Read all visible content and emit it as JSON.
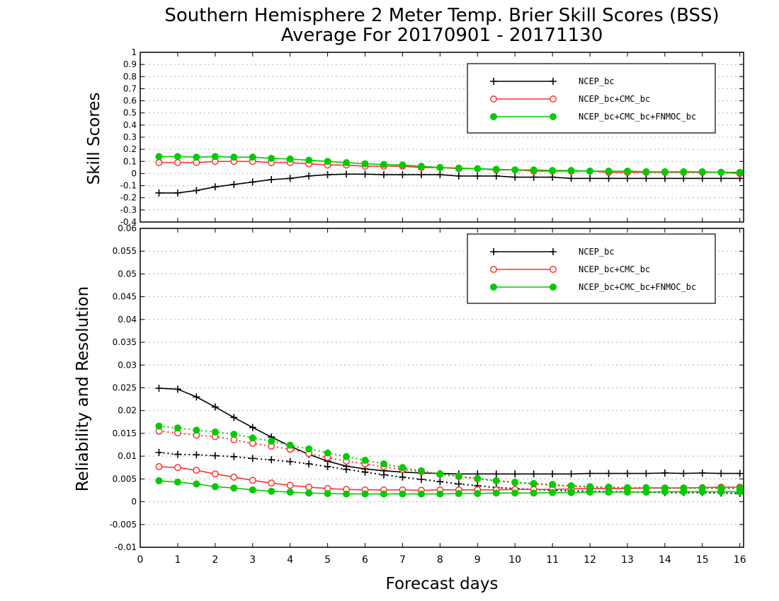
{
  "title_line1": "Southern Hemisphere 2 Meter Temp. Brier Skill Scores (BSS)",
  "title_line2": "Average For 20170901 - 20171130",
  "xlabel": "Forecast days",
  "x_ticks": [
    "0",
    "1",
    "2",
    "3",
    "4",
    "5",
    "6",
    "7",
    "8",
    "9",
    "10",
    "11",
    "12",
    "13",
    "14",
    "15",
    "16"
  ],
  "colors": {
    "NCEP_bc": "#000000",
    "NCEP_bc+CMC_bc": "#ff3030",
    "NCEP_bc+CMC_bc+FNMOC_bc": "#00cc00",
    "grid": "#b0b0b0"
  },
  "chart_data": [
    {
      "type": "line",
      "ylabel": "Skill Scores",
      "xlim": [
        0,
        16.1
      ],
      "ylim": [
        -0.4,
        1
      ],
      "y_ticks": [
        "-0.4",
        "-0.3",
        "-0.2",
        "-0.1",
        "0",
        "0.1",
        "0.2",
        "0.3",
        "0.4",
        "0.5",
        "0.6",
        "0.7",
        "0.8",
        "0.9",
        "1"
      ],
      "grid": true,
      "legend_position": "top-right",
      "x": [
        0.5,
        1,
        1.5,
        2,
        2.5,
        3,
        3.5,
        4,
        4.5,
        5,
        5.5,
        6,
        6.5,
        7,
        7.5,
        8,
        8.5,
        9,
        9.5,
        10,
        10.5,
        11,
        11.5,
        12,
        12.5,
        13,
        13.5,
        14,
        14.5,
        15,
        15.5,
        16
      ],
      "series": [
        {
          "name": "NCEP_bc",
          "marker": "plus",
          "linestyle": "solid",
          "values": [
            -0.16,
            -0.16,
            -0.14,
            -0.11,
            -0.09,
            -0.07,
            -0.05,
            -0.04,
            -0.02,
            -0.01,
            -0.005,
            -0.005,
            -0.01,
            -0.01,
            -0.01,
            -0.01,
            -0.02,
            -0.02,
            -0.02,
            -0.03,
            -0.03,
            -0.03,
            -0.04,
            -0.04,
            -0.04,
            -0.04,
            -0.04,
            -0.04,
            -0.04,
            -0.04,
            -0.04,
            -0.04
          ]
        },
        {
          "name": "NCEP_bc+CMC_bc",
          "marker": "circle-open",
          "linestyle": "solid",
          "values": [
            0.09,
            0.09,
            0.09,
            0.1,
            0.1,
            0.1,
            0.09,
            0.09,
            0.08,
            0.07,
            0.07,
            0.06,
            0.06,
            0.06,
            0.05,
            0.05,
            0.04,
            0.04,
            0.03,
            0.03,
            0.02,
            0.02,
            0.02,
            0.02,
            0.01,
            0.01,
            0.01,
            0.01,
            0.01,
            0.01,
            0.01,
            0.0
          ]
        },
        {
          "name": "NCEP_bc+CMC_bc+FNMOC_bc",
          "marker": "circle-filled",
          "linestyle": "solid",
          "values": [
            0.14,
            0.14,
            0.135,
            0.14,
            0.135,
            0.135,
            0.125,
            0.12,
            0.11,
            0.1,
            0.09,
            0.08,
            0.075,
            0.07,
            0.06,
            0.05,
            0.045,
            0.04,
            0.035,
            0.03,
            0.03,
            0.025,
            0.025,
            0.02,
            0.02,
            0.02,
            0.015,
            0.015,
            0.015,
            0.015,
            0.01,
            0.01
          ]
        }
      ]
    },
    {
      "type": "line",
      "ylabel": "Reliability and Resolution",
      "xlim": [
        0,
        16.1
      ],
      "ylim": [
        -0.01,
        0.06
      ],
      "y_ticks": [
        "-0.01",
        "-0.005",
        "0",
        "0.005",
        "0.01",
        "0.015",
        "0.02",
        "0.025",
        "0.03",
        "0.035",
        "0.04",
        "0.045",
        "0.05",
        "0.055",
        "0.06"
      ],
      "grid": true,
      "legend_position": "top-right",
      "x": [
        0.5,
        1,
        1.5,
        2,
        2.5,
        3,
        3.5,
        4,
        4.5,
        5,
        5.5,
        6,
        6.5,
        7,
        7.5,
        8,
        8.5,
        9,
        9.5,
        10,
        10.5,
        11,
        11.5,
        12,
        12.5,
        13,
        13.5,
        14,
        14.5,
        15,
        15.5,
        16
      ],
      "series": [
        {
          "name": "NCEP_bc",
          "component": "resolution",
          "marker": "plus",
          "linestyle": "solid",
          "values": [
            0.0249,
            0.0247,
            0.023,
            0.0208,
            0.0185,
            0.0163,
            0.0142,
            0.0122,
            0.0104,
            0.0089,
            0.0078,
            0.0072,
            0.0068,
            0.0065,
            0.0063,
            0.0062,
            0.0061,
            0.0061,
            0.0061,
            0.0061,
            0.0061,
            0.0061,
            0.0061,
            0.0062,
            0.0062,
            0.0062,
            0.0062,
            0.0063,
            0.0062,
            0.0063,
            0.0062,
            0.0062
          ]
        },
        {
          "name": "NCEP_bc",
          "component": "reliability",
          "marker": "plus",
          "linestyle": "dotted",
          "values": [
            0.0108,
            0.0104,
            0.0103,
            0.0101,
            0.0099,
            0.0095,
            0.0092,
            0.0088,
            0.0083,
            0.0077,
            0.0071,
            0.0065,
            0.0059,
            0.0054,
            0.0049,
            0.0044,
            0.0039,
            0.0035,
            0.0031,
            0.0029,
            0.0027,
            0.0025,
            0.0024,
            0.0023,
            0.0022,
            0.0022,
            0.0021,
            0.002,
            0.002,
            0.002,
            0.0019,
            0.0018
          ]
        },
        {
          "name": "NCEP_bc+CMC_bc",
          "component": "resolution",
          "marker": "circle-open",
          "linestyle": "dotted",
          "values": [
            0.0155,
            0.0151,
            0.0146,
            0.0143,
            0.0136,
            0.0128,
            0.0122,
            0.0115,
            0.0106,
            0.0097,
            0.0089,
            0.0083,
            0.0077,
            0.0071,
            0.0066,
            0.006,
            0.0055,
            0.005,
            0.0046,
            0.0042,
            0.0039,
            0.0036,
            0.0034,
            0.0032,
            0.0031,
            0.003,
            0.003,
            0.003,
            0.003,
            0.003,
            0.0029,
            0.0029
          ]
        },
        {
          "name": "NCEP_bc+CMC_bc",
          "component": "reliability",
          "marker": "circle-open",
          "linestyle": "solid",
          "values": [
            0.0077,
            0.0075,
            0.0069,
            0.0061,
            0.0054,
            0.0047,
            0.0041,
            0.0036,
            0.0032,
            0.0029,
            0.0027,
            0.0026,
            0.0026,
            0.0026,
            0.0025,
            0.0026,
            0.0026,
            0.0026,
            0.0026,
            0.0027,
            0.0027,
            0.0027,
            0.0028,
            0.0029,
            0.0029,
            0.0029,
            0.003,
            0.003,
            0.003,
            0.0031,
            0.0032,
            0.0032
          ]
        },
        {
          "name": "NCEP_bc+CMC_bc+FNMOC_bc",
          "component": "resolution",
          "marker": "circle-filled",
          "linestyle": "dotted",
          "values": [
            0.0166,
            0.0162,
            0.0157,
            0.0153,
            0.0148,
            0.014,
            0.0133,
            0.0124,
            0.0116,
            0.0107,
            0.0099,
            0.0091,
            0.0083,
            0.0075,
            0.0068,
            0.0061,
            0.0056,
            0.0051,
            0.0046,
            0.0043,
            0.004,
            0.0038,
            0.0035,
            0.0033,
            0.0032,
            0.0031,
            0.0031,
            0.003,
            0.003,
            0.003,
            0.003,
            0.003
          ]
        },
        {
          "name": "NCEP_bc+CMC_bc+FNMOC_bc",
          "component": "reliability",
          "marker": "circle-filled",
          "linestyle": "solid",
          "values": [
            0.0046,
            0.0043,
            0.0039,
            0.0033,
            0.003,
            0.0026,
            0.0023,
            0.0021,
            0.0019,
            0.0018,
            0.0017,
            0.0017,
            0.0017,
            0.0017,
            0.0017,
            0.0017,
            0.0018,
            0.0018,
            0.0019,
            0.0019,
            0.0019,
            0.002,
            0.002,
            0.0021,
            0.0021,
            0.0021,
            0.0021,
            0.0022,
            0.0022,
            0.0022,
            0.0022,
            0.0022
          ]
        }
      ]
    }
  ]
}
